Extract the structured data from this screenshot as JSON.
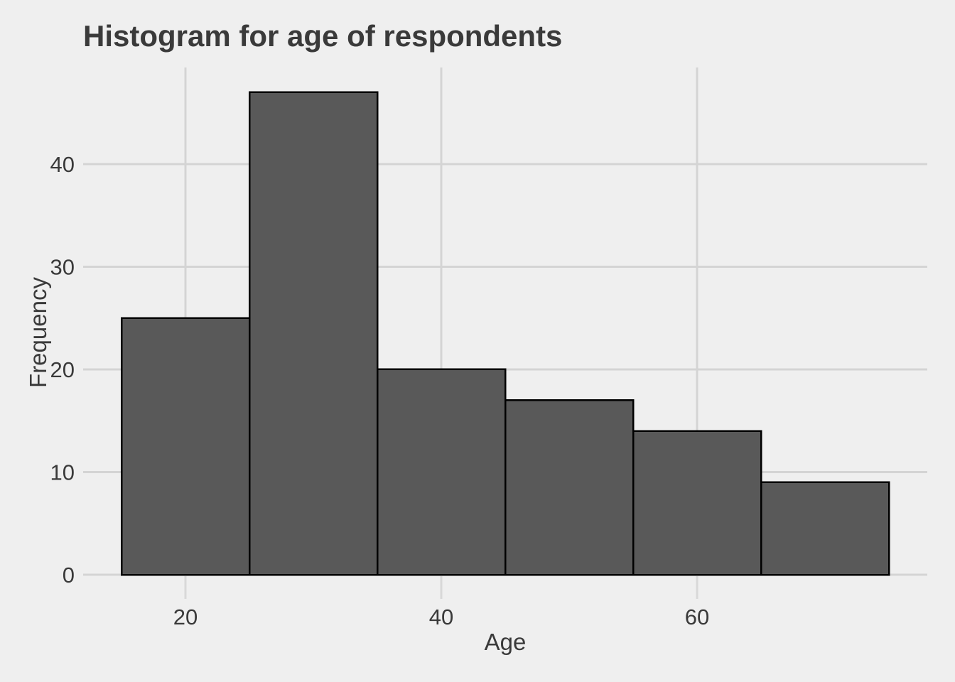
{
  "chart_data": {
    "type": "bar",
    "subtype": "histogram",
    "title": "Histogram for age of respondents",
    "xlabel": "Age",
    "ylabel": "Frequency",
    "bin_edges": [
      15,
      25,
      35,
      45,
      55,
      65,
      75
    ],
    "counts": [
      25,
      47,
      20,
      17,
      14,
      9
    ],
    "xticks": [
      20,
      40,
      60
    ],
    "xtick_labels": [
      "20",
      "40",
      "60"
    ],
    "yticks": [
      0,
      10,
      20,
      30,
      40
    ],
    "ytick_labels": [
      "0",
      "10",
      "20",
      "30",
      "40"
    ],
    "xlim": [
      12,
      78
    ],
    "ylim": [
      0,
      49.4
    ],
    "grid": "major-only",
    "legend": "none"
  },
  "colors": {
    "background": "#EFEFEF",
    "gridline": "#D4D4D4",
    "tick_mark": "#D8D8D8",
    "bar_fill": "#595959",
    "bar_stroke": "#000000",
    "text": "#3A3A3A",
    "title_text": "#3A3A3A"
  }
}
